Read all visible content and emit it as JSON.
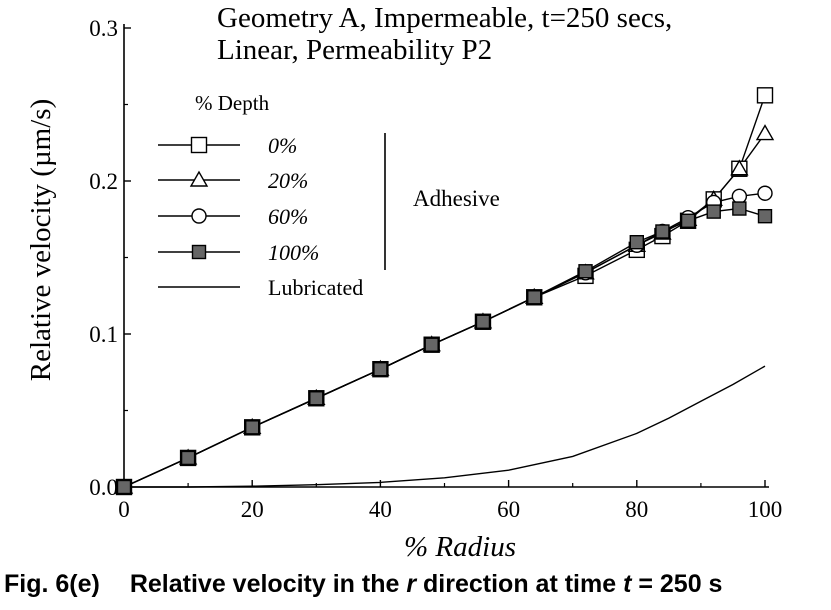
{
  "chart_data": {
    "type": "line",
    "title_lines": [
      "Geometry A, Impermeable, t=250 secs,",
      "Linear, Permeability P2"
    ],
    "xlabel": "% Radius",
    "ylabel": "Relative velocity (µm/s)",
    "xlim": [
      0,
      100
    ],
    "ylim": [
      0,
      0.3
    ],
    "x_ticks": [
      "0",
      "20",
      "40",
      "60",
      "80",
      "100"
    ],
    "y_ticks": [
      "0.0",
      "0.1",
      "0.2",
      "0.3"
    ],
    "legend_title": "% Depth",
    "group_label": "Adhesive",
    "grid": false,
    "legend_position": "upper-left",
    "series": [
      {
        "name": "0%",
        "marker": "square-open",
        "x": [
          0,
          10,
          20,
          30,
          40,
          48,
          56,
          64,
          72,
          80,
          84,
          88,
          92,
          96,
          100
        ],
        "y": [
          0.0,
          0.019,
          0.039,
          0.058,
          0.077,
          0.093,
          0.108,
          0.124,
          0.138,
          0.155,
          0.164,
          0.174,
          0.188,
          0.208,
          0.256
        ]
      },
      {
        "name": "20%",
        "marker": "triangle-open",
        "x": [
          0,
          10,
          20,
          30,
          40,
          48,
          56,
          64,
          72,
          80,
          84,
          88,
          92,
          96,
          100
        ],
        "y": [
          0.0,
          0.019,
          0.039,
          0.058,
          0.077,
          0.093,
          0.108,
          0.124,
          0.14,
          0.158,
          0.166,
          0.175,
          0.188,
          0.208,
          0.231
        ]
      },
      {
        "name": "60%",
        "marker": "circle-open",
        "x": [
          0,
          10,
          20,
          30,
          40,
          48,
          56,
          64,
          72,
          80,
          84,
          88,
          92,
          96,
          100
        ],
        "y": [
          0.0,
          0.019,
          0.039,
          0.058,
          0.077,
          0.093,
          0.108,
          0.124,
          0.14,
          0.158,
          0.167,
          0.176,
          0.186,
          0.19,
          0.192
        ]
      },
      {
        "name": "100%",
        "marker": "square-filled",
        "x": [
          0,
          10,
          20,
          30,
          40,
          48,
          56,
          64,
          72,
          80,
          84,
          88,
          92,
          96,
          100
        ],
        "y": [
          0.0,
          0.019,
          0.039,
          0.058,
          0.077,
          0.093,
          0.108,
          0.124,
          0.141,
          0.16,
          0.167,
          0.174,
          0.18,
          0.182,
          0.177
        ]
      },
      {
        "name": "Lubricated",
        "marker": "none",
        "x": [
          0,
          10,
          20,
          30,
          40,
          50,
          60,
          70,
          80,
          85,
          90,
          95,
          100
        ],
        "y": [
          0.0,
          0.0,
          0.0005,
          0.0015,
          0.003,
          0.006,
          0.011,
          0.02,
          0.035,
          0.045,
          0.056,
          0.067,
          0.079
        ]
      }
    ]
  },
  "caption": {
    "fig": "Fig. 6(e)",
    "text_a": "Relative velocity in the ",
    "text_var": "r",
    "text_b": " direction at time ",
    "text_t": "t",
    "text_c": " = 250 s"
  }
}
